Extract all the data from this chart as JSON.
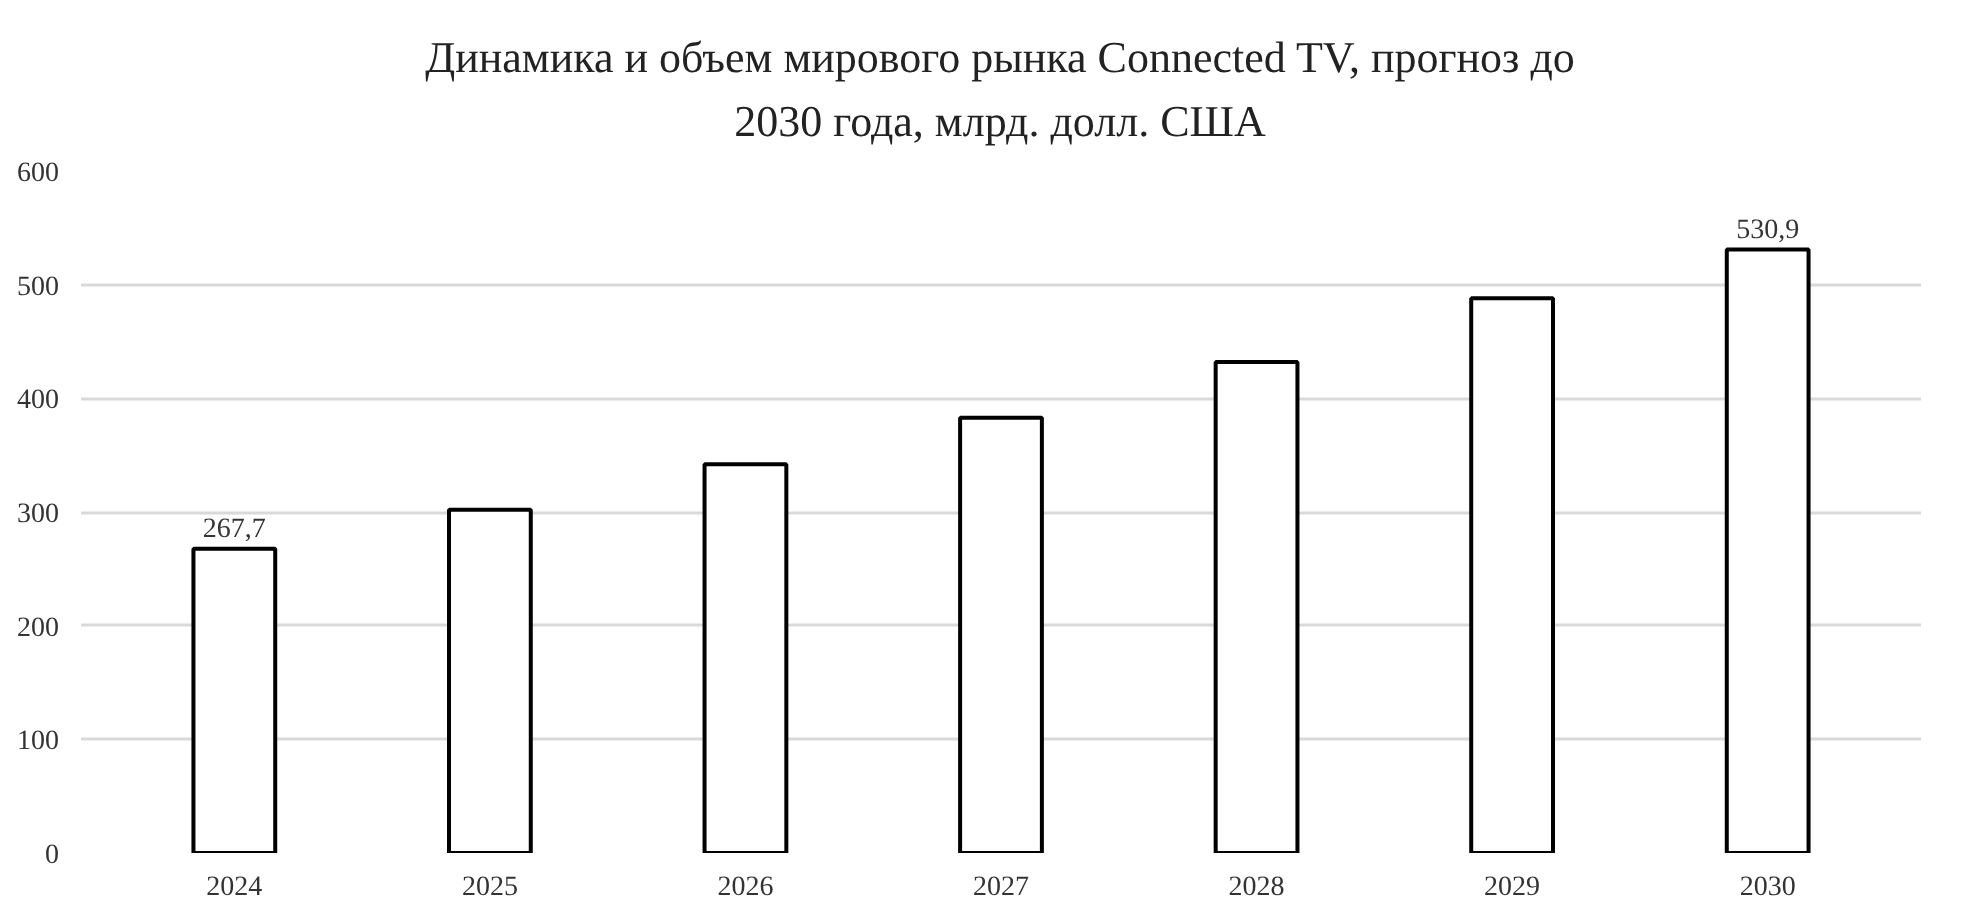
{
  "chart_data": {
    "type": "bar",
    "title": "Динамика и объем мирового рынка Connected TV, прогноз до\n2030 года, млрд. долл. США",
    "categories": [
      "2024",
      "2025",
      "2026",
      "2027",
      "2028",
      "2029",
      "2030"
    ],
    "values": [
      267.7,
      302,
      342,
      383,
      432,
      488,
      530.9
    ],
    "value_labels": [
      "267,7",
      null,
      null,
      null,
      null,
      null,
      "530,9"
    ],
    "color": "#ffffff",
    "ylim": [
      0,
      600
    ],
    "yticks": [
      0,
      100,
      200,
      300,
      400,
      500,
      600
    ],
    "grid": "y"
  }
}
